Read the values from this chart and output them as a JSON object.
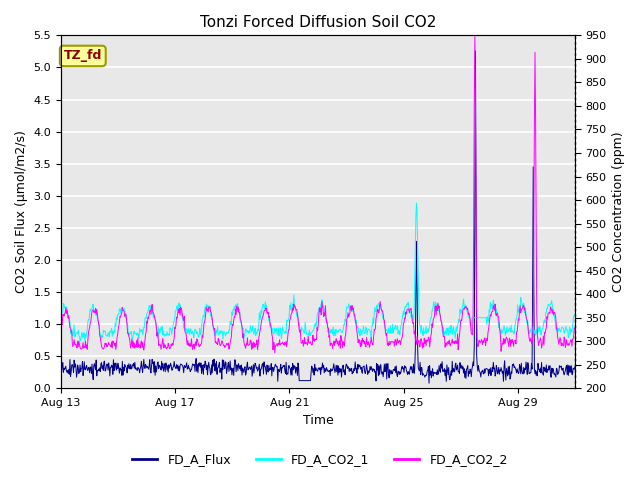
{
  "title": "Tonzi Forced Diffusion Soil CO2",
  "xlabel": "Time",
  "ylabel_left": "CO2 Soil Flux (μmol/m2/s)",
  "ylabel_right": "CO2 Concentration (ppm)",
  "ylim_left": [
    0.0,
    5.5
  ],
  "ylim_right": [
    200,
    950
  ],
  "yticks_left": [
    0.0,
    0.5,
    1.0,
    1.5,
    2.0,
    2.5,
    3.0,
    3.5,
    4.0,
    4.5,
    5.0,
    5.5
  ],
  "yticks_right": [
    200,
    250,
    300,
    350,
    400,
    450,
    500,
    550,
    600,
    650,
    700,
    750,
    800,
    850,
    900,
    950
  ],
  "xtick_positions": [
    0,
    4,
    8,
    12,
    16
  ],
  "xtick_labels": [
    "Aug 13",
    "Aug 17",
    "Aug 21",
    "Aug 25",
    "Aug 29"
  ],
  "xlim": [
    0,
    18
  ],
  "color_flux": "#00008B",
  "color_co2_1": "#00FFFF",
  "color_co2_2": "#FF00FF",
  "label_flux": "FD_A_Flux",
  "label_co2_1": "FD_A_CO2_1",
  "label_co2_2": "FD_A_CO2_2",
  "annotation_text": "TZ_fd",
  "annotation_color": "#8B0000",
  "annotation_bg": "#FFFF99",
  "annotation_edge": "#999900",
  "background_color": "#E8E8E8",
  "grid_color": "#FFFFFF",
  "title_fontsize": 11,
  "axis_label_fontsize": 9,
  "tick_fontsize": 8,
  "legend_fontsize": 9,
  "n_points": 864,
  "line_width": 0.7
}
